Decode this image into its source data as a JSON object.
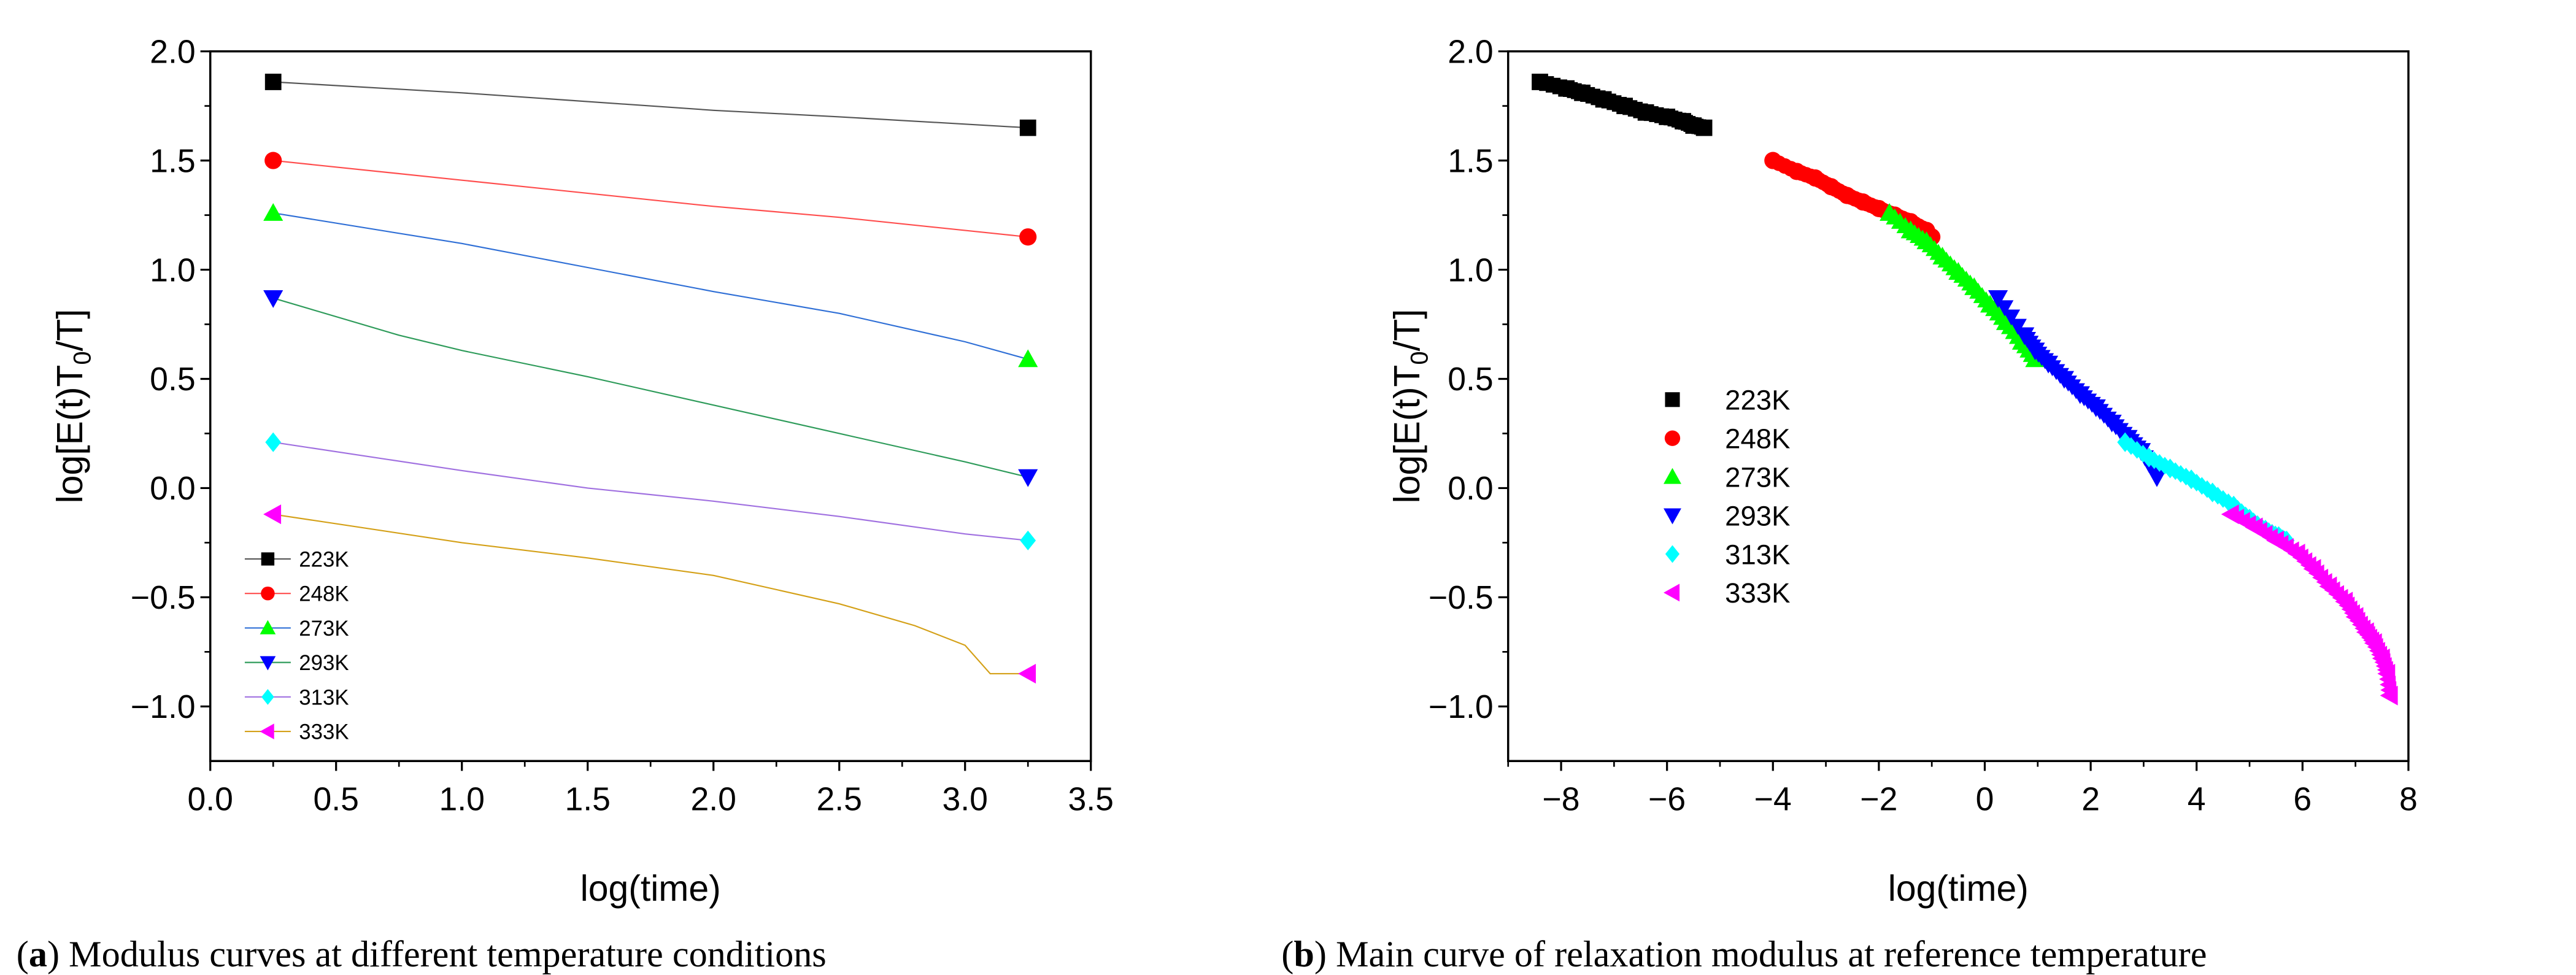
{
  "chart_data": [
    {
      "type": "line",
      "panel": "a",
      "caption_label": "a",
      "caption_text": "Modulus curves at different temperature conditions",
      "xlabel": "log(time)",
      "ylabel_main": "log[E(t)T",
      "ylabel_sub": "0",
      "ylabel_end": "/T]",
      "xlim": [
        0,
        3.5
      ],
      "ylim": [
        -1.25,
        2.0
      ],
      "xticks": [
        "0.0",
        "0.5",
        "1.0",
        "1.5",
        "2.0",
        "2.5",
        "3.0",
        "3.5"
      ],
      "yticks": [
        "2.0",
        "1.5",
        "1.0",
        "0.5",
        "0.0",
        "−0.5",
        "−1.0"
      ],
      "legend_position": "bottom-left",
      "series": [
        {
          "name": "223K",
          "color": "#000000",
          "line_color": "#555555",
          "marker": "square",
          "x": [
            0.25,
            1.0,
            2.0,
            2.5,
            3.25
          ],
          "y": [
            1.86,
            1.81,
            1.73,
            1.7,
            1.65
          ]
        },
        {
          "name": "248K",
          "color": "#ff0000",
          "line_color": "#ff4d4d",
          "marker": "circle",
          "x": [
            0.25,
            1.0,
            2.0,
            2.5,
            3.25
          ],
          "y": [
            1.5,
            1.41,
            1.29,
            1.24,
            1.15
          ]
        },
        {
          "name": "273K",
          "color": "#00ff00",
          "line_color": "#2f6fd6",
          "marker": "triangle-up",
          "x": [
            0.25,
            1.0,
            1.5,
            2.0,
            2.5,
            3.0,
            3.25
          ],
          "y": [
            1.26,
            1.12,
            1.01,
            0.9,
            0.8,
            0.67,
            0.59
          ]
        },
        {
          "name": "293K",
          "color": "#0000ff",
          "line_color": "#2e9b5a",
          "marker": "triangle-down",
          "x": [
            0.25,
            0.75,
            1.0,
            1.5,
            2.0,
            2.5,
            3.0,
            3.25
          ],
          "y": [
            0.87,
            0.7,
            0.63,
            0.51,
            0.38,
            0.25,
            0.12,
            0.05
          ]
        },
        {
          "name": "313K",
          "color": "#00ffff",
          "line_color": "#a070e0",
          "marker": "diamond",
          "x": [
            0.25,
            1.0,
            1.5,
            2.0,
            2.5,
            3.0,
            3.25
          ],
          "y": [
            0.21,
            0.08,
            0.0,
            -0.06,
            -0.13,
            -0.21,
            -0.24
          ]
        },
        {
          "name": "333K",
          "color": "#ff00ff",
          "line_color": "#d4a017",
          "marker": "triangle-left",
          "x": [
            0.25,
            1.0,
            1.5,
            2.0,
            2.5,
            2.8,
            3.0,
            3.1,
            3.25
          ],
          "y": [
            -0.12,
            -0.25,
            -0.32,
            -0.4,
            -0.53,
            -0.63,
            -0.72,
            -0.85,
            -0.85
          ]
        }
      ]
    },
    {
      "type": "scatter",
      "panel": "b",
      "caption_label": "b",
      "caption_text": "Main curve of relaxation modulus at reference temperature",
      "xlabel": "log(time)",
      "ylabel_main": "log[E(t)T",
      "ylabel_sub": "0",
      "ylabel_end": "/T]",
      "xlim": [
        -9,
        8
      ],
      "ylim": [
        -1.25,
        2.0
      ],
      "xticks": [
        "−8",
        "−6",
        "−4",
        "−2",
        "0",
        "2",
        "4",
        "6",
        "8"
      ],
      "yticks": [
        "2.0",
        "1.5",
        "1.0",
        "0.5",
        "0.0",
        "−0.5",
        "−1.0"
      ],
      "legend_position": "middle-left",
      "series": [
        {
          "name": "223K",
          "color": "#000000",
          "marker": "square",
          "x": [
            -8.4,
            -7.9,
            -7.6,
            -7.2,
            -6.8,
            -6.4,
            -6.0,
            -5.7,
            -5.5,
            -5.3
          ],
          "y": [
            1.86,
            1.83,
            1.81,
            1.78,
            1.75,
            1.72,
            1.7,
            1.68,
            1.66,
            1.65
          ]
        },
        {
          "name": "248K",
          "color": "#ff0000",
          "marker": "circle",
          "x": [
            -4.0,
            -3.55,
            -3.2,
            -2.9,
            -2.6,
            -2.3,
            -2.0,
            -1.7,
            -1.4,
            -1.1,
            -1.0
          ],
          "y": [
            1.5,
            1.45,
            1.42,
            1.38,
            1.34,
            1.31,
            1.28,
            1.25,
            1.22,
            1.18,
            1.15
          ]
        },
        {
          "name": "273K",
          "color": "#00ff00",
          "marker": "triangle-up",
          "x": [
            -1.8,
            -1.4,
            -1.1,
            -0.8,
            -0.5,
            -0.2,
            0.1,
            0.4,
            0.7,
            0.95
          ],
          "y": [
            1.26,
            1.18,
            1.13,
            1.06,
            0.99,
            0.92,
            0.84,
            0.76,
            0.67,
            0.59
          ]
        },
        {
          "name": "293K",
          "color": "#0000ff",
          "marker": "triangle-down",
          "x": [
            0.25,
            0.75,
            0.95,
            1.2,
            1.5,
            1.8,
            2.1,
            2.4,
            2.7,
            2.95,
            3.25
          ],
          "y": [
            0.87,
            0.7,
            0.63,
            0.57,
            0.5,
            0.43,
            0.37,
            0.3,
            0.23,
            0.17,
            0.05
          ]
        },
        {
          "name": "313K",
          "color": "#00ffff",
          "marker": "diamond",
          "x": [
            2.65,
            3.1,
            3.5,
            3.9,
            4.3,
            4.7,
            5.0,
            5.3,
            5.55,
            5.7
          ],
          "y": [
            0.21,
            0.14,
            0.09,
            0.04,
            -0.02,
            -0.08,
            -0.14,
            -0.19,
            -0.22,
            -0.24
          ]
        },
        {
          "name": "333K",
          "color": "#ff00ff",
          "marker": "triangle-left",
          "x": [
            4.65,
            5.1,
            5.5,
            5.9,
            6.2,
            6.5,
            6.8,
            7.0,
            7.2,
            7.35,
            7.5,
            7.6,
            7.65
          ],
          "y": [
            -0.12,
            -0.18,
            -0.24,
            -0.3,
            -0.37,
            -0.45,
            -0.52,
            -0.59,
            -0.66,
            -0.71,
            -0.78,
            -0.85,
            -0.95
          ]
        }
      ]
    }
  ]
}
